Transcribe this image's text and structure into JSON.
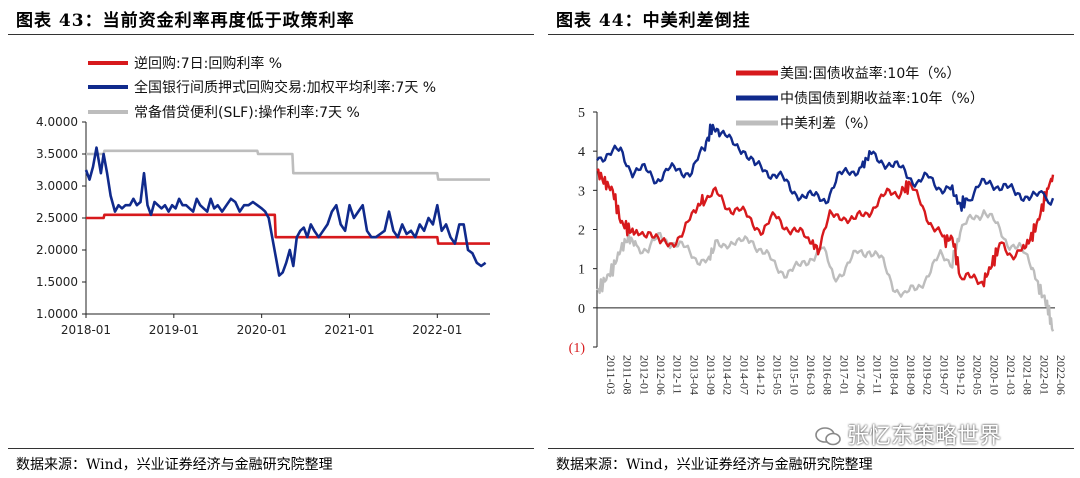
{
  "left_panel": {
    "title": "图表 43：当前资金利率再度低于政策利率",
    "source": "数据来源：Wind，兴业证券经济与金融研究院整理"
  },
  "right_panel": {
    "title": "图表 44：中美利差倒挂",
    "source": "数据来源：Wind，兴业证券经济与金融研究院整理",
    "watermark": "张忆东策略世界"
  },
  "colors": {
    "red": "#d7191c",
    "navy": "#102a8c",
    "gray": "#bdbdbd"
  },
  "chart_data": [
    {
      "type": "line",
      "title": "当前资金利率再度低于政策利率",
      "ylim": [
        1.0,
        4.0
      ],
      "yticks": [
        "4.0000",
        "3.5000",
        "3.0000",
        "2.5000",
        "2.0000",
        "1.5000",
        "1.0000"
      ],
      "yticks_values": [
        4.0,
        3.5,
        3.0,
        2.5,
        2.0,
        1.5,
        1.0
      ],
      "xlim": [
        2018.0,
        2022.6
      ],
      "xticks": [
        "2018-01",
        "2019-01",
        "2020-01",
        "2021-01",
        "2022-01"
      ],
      "xticks_values": [
        2018.0,
        2019.0,
        2020.0,
        2021.0,
        2022.0
      ],
      "series": [
        {
          "name": "逆回购:7日:回购利率 %",
          "color": "#d7191c",
          "x": [
            2018.0,
            2018.2,
            2018.21,
            2020.15,
            2020.16,
            2022.0,
            2022.01,
            2022.6
          ],
          "y": [
            2.5,
            2.5,
            2.55,
            2.55,
            2.2,
            2.2,
            2.1,
            2.1
          ]
        },
        {
          "name": "全国银行间质押式回购交易:加权平均利率:7天 %",
          "color": "#102a8c",
          "x": [
            2018.0,
            2018.04,
            2018.08,
            2018.12,
            2018.17,
            2018.2,
            2018.24,
            2018.28,
            2018.33,
            2018.37,
            2018.41,
            2018.45,
            2018.5,
            2018.54,
            2018.58,
            2018.62,
            2018.66,
            2018.7,
            2018.74,
            2018.78,
            2018.82,
            2018.86,
            2018.9,
            2018.94,
            2018.98,
            2019.02,
            2019.06,
            2019.1,
            2019.14,
            2019.18,
            2019.22,
            2019.26,
            2019.3,
            2019.34,
            2019.38,
            2019.42,
            2019.46,
            2019.5,
            2019.55,
            2019.6,
            2019.65,
            2019.7,
            2019.75,
            2019.8,
            2019.85,
            2019.9,
            2019.95,
            2020.0,
            2020.04,
            2020.08,
            2020.12,
            2020.16,
            2020.2,
            2020.24,
            2020.28,
            2020.32,
            2020.36,
            2020.4,
            2020.44,
            2020.48,
            2020.52,
            2020.56,
            2020.6,
            2020.65,
            2020.7,
            2020.75,
            2020.8,
            2020.85,
            2020.9,
            2020.95,
            2021.0,
            2021.05,
            2021.1,
            2021.15,
            2021.2,
            2021.25,
            2021.3,
            2021.35,
            2021.4,
            2021.45,
            2021.5,
            2021.55,
            2021.6,
            2021.65,
            2021.7,
            2021.75,
            2021.8,
            2021.85,
            2021.9,
            2021.95,
            2022.0,
            2022.05,
            2022.1,
            2022.15,
            2022.2,
            2022.25,
            2022.3,
            2022.35,
            2022.4,
            2022.45,
            2022.5,
            2022.55
          ],
          "y": [
            3.25,
            3.1,
            3.3,
            3.6,
            3.2,
            3.5,
            3.2,
            2.85,
            2.6,
            2.7,
            2.65,
            2.7,
            2.7,
            2.8,
            2.7,
            2.75,
            3.2,
            2.7,
            2.55,
            2.75,
            2.7,
            2.65,
            2.7,
            2.6,
            2.7,
            2.65,
            2.8,
            2.7,
            2.7,
            2.65,
            2.6,
            2.8,
            2.7,
            2.65,
            2.6,
            2.8,
            2.65,
            2.7,
            2.6,
            2.7,
            2.8,
            2.75,
            2.6,
            2.7,
            2.7,
            2.75,
            2.7,
            2.65,
            2.6,
            2.5,
            2.2,
            1.9,
            1.6,
            1.65,
            1.8,
            2.0,
            1.75,
            2.2,
            2.3,
            2.35,
            2.2,
            2.4,
            2.3,
            2.2,
            2.3,
            2.4,
            2.6,
            2.7,
            2.4,
            2.3,
            2.7,
            2.5,
            2.6,
            2.7,
            2.3,
            2.2,
            2.2,
            2.25,
            2.3,
            2.6,
            2.3,
            2.2,
            2.4,
            2.25,
            2.3,
            2.2,
            2.4,
            2.3,
            2.5,
            2.4,
            2.7,
            2.3,
            2.4,
            2.2,
            2.1,
            2.4,
            2.4,
            2.0,
            1.95,
            1.8,
            1.75,
            1.8
          ]
        },
        {
          "name": "常备借贷便利(SLF):操作利率:7天 %",
          "color": "#bdbdbd",
          "x": [
            2018.0,
            2018.2,
            2018.21,
            2019.95,
            2019.96,
            2020.35,
            2020.36,
            2022.0,
            2022.01,
            2022.6
          ],
          "y": [
            3.5,
            3.5,
            3.55,
            3.55,
            3.5,
            3.5,
            3.2,
            3.2,
            3.1,
            3.1
          ]
        }
      ]
    },
    {
      "type": "line",
      "title": "中美利差倒挂",
      "ylim": [
        -1,
        5
      ],
      "yticks": [
        "5",
        "4",
        "3",
        "2",
        "1",
        "0",
        "(1)"
      ],
      "yticks_values": [
        5,
        4,
        3,
        2,
        1,
        0,
        -1
      ],
      "xlim": [
        2011.0,
        2022.6
      ],
      "xticks": [
        "2011-03",
        "2011-08",
        "2012-01",
        "2012-06",
        "2012-11",
        "2013-04",
        "2013-09",
        "2014-02",
        "2014-07",
        "2014-12",
        "2015-05",
        "2015-10",
        "2016-03",
        "2016-08",
        "2017-01",
        "2017-06",
        "2017-11",
        "2018-04",
        "2018-09",
        "2019-02",
        "2019-07",
        "2019-12",
        "2020-05",
        "2020-10",
        "2021-03",
        "2021-08",
        "2022-01",
        "2022-06"
      ],
      "series": [
        {
          "name": "美国:国债收益率:10年（%）",
          "color": "#d7191c",
          "x": [
            2011.0,
            2011.2,
            2011.4,
            2011.6,
            2011.8,
            2012.0,
            2012.3,
            2012.6,
            2012.9,
            2013.2,
            2013.5,
            2013.7,
            2014.0,
            2014.3,
            2014.6,
            2014.9,
            2015.2,
            2015.5,
            2015.8,
            2016.1,
            2016.4,
            2016.6,
            2016.9,
            2017.2,
            2017.5,
            2017.8,
            2018.1,
            2018.4,
            2018.7,
            2018.9,
            2019.2,
            2019.5,
            2019.8,
            2020.0,
            2020.2,
            2020.5,
            2020.8,
            2021.0,
            2021.2,
            2021.5,
            2021.8,
            2022.0,
            2022.2,
            2022.4,
            2022.55
          ],
          "y": [
            3.5,
            3.2,
            3.0,
            2.2,
            2.0,
            1.9,
            2.0,
            1.6,
            1.7,
            1.9,
            2.5,
            2.8,
            2.9,
            2.6,
            2.5,
            2.2,
            2.0,
            2.3,
            2.1,
            1.9,
            1.7,
            1.5,
            2.3,
            2.4,
            2.2,
            2.4,
            2.7,
            2.9,
            3.0,
            3.1,
            2.7,
            2.1,
            1.7,
            1.8,
            0.8,
            0.7,
            0.7,
            1.1,
            1.6,
            1.4,
            1.5,
            1.8,
            2.3,
            3.0,
            3.4
          ]
        },
        {
          "name": "中债国债到期收益率:10年（%）",
          "color": "#102a8c",
          "x": [
            2011.0,
            2011.3,
            2011.6,
            2011.9,
            2012.2,
            2012.5,
            2012.8,
            2013.1,
            2013.4,
            2013.7,
            2013.9,
            2014.1,
            2014.4,
            2014.7,
            2015.0,
            2015.3,
            2015.6,
            2015.9,
            2016.2,
            2016.5,
            2016.8,
            2017.1,
            2017.4,
            2017.7,
            2017.9,
            2018.2,
            2018.5,
            2018.8,
            2019.1,
            2019.4,
            2019.7,
            2020.0,
            2020.2,
            2020.4,
            2020.7,
            2021.0,
            2021.3,
            2021.6,
            2021.9,
            2022.2,
            2022.55
          ],
          "y": [
            3.9,
            3.9,
            4.0,
            3.5,
            3.5,
            3.3,
            3.5,
            3.5,
            3.5,
            4.0,
            4.6,
            4.5,
            4.2,
            4.1,
            3.6,
            3.5,
            3.4,
            3.0,
            2.9,
            2.8,
            2.8,
            3.3,
            3.5,
            3.6,
            3.9,
            3.8,
            3.6,
            3.5,
            3.2,
            3.3,
            3.1,
            3.0,
            2.6,
            2.8,
            3.1,
            3.2,
            3.1,
            2.9,
            2.9,
            2.8,
            2.8
          ]
        },
        {
          "name": "中美利差（%）",
          "color": "#bdbdbd",
          "x": [
            2011.0,
            2011.2,
            2011.4,
            2011.6,
            2011.8,
            2012.0,
            2012.3,
            2012.6,
            2012.9,
            2013.2,
            2013.5,
            2013.8,
            2014.0,
            2014.3,
            2014.6,
            2014.9,
            2015.2,
            2015.5,
            2015.8,
            2016.1,
            2016.4,
            2016.7,
            2017.0,
            2017.3,
            2017.6,
            2017.9,
            2018.2,
            2018.5,
            2018.8,
            2019.1,
            2019.4,
            2019.7,
            2020.0,
            2020.2,
            2020.5,
            2020.8,
            2021.1,
            2021.4,
            2021.7,
            2022.0,
            2022.2,
            2022.4,
            2022.55
          ],
          "y": [
            0.4,
            0.7,
            1.0,
            1.5,
            1.8,
            1.6,
            1.5,
            1.8,
            1.7,
            1.5,
            1.3,
            1.2,
            1.6,
            1.7,
            1.6,
            1.8,
            1.4,
            1.1,
            0.9,
            1.0,
            1.3,
            1.5,
            0.8,
            1.0,
            1.4,
            1.5,
            1.2,
            0.6,
            0.3,
            0.5,
            0.9,
            1.3,
            1.2,
            1.9,
            2.3,
            2.5,
            2.1,
            1.7,
            1.5,
            1.1,
            0.5,
            0.1,
            -0.6
          ]
        }
      ]
    }
  ]
}
